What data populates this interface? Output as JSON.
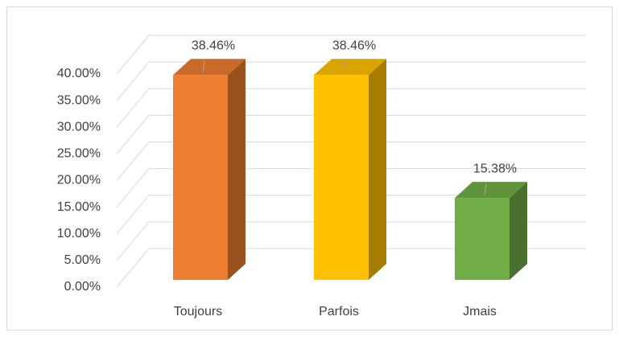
{
  "chart_data": {
    "type": "bar3d",
    "categories": [
      "Toujours",
      "Parfois",
      "Jmais"
    ],
    "values": [
      38.46,
      38.46,
      15.38
    ],
    "value_labels": [
      "38.46%",
      "38.46%",
      "15.38%"
    ],
    "colors": [
      "#ed7d31",
      "#ffc000",
      "#70ad47"
    ],
    "ylim": [
      0,
      40
    ],
    "yticks": [
      {
        "value": 0,
        "label": "0.00%"
      },
      {
        "value": 5,
        "label": "5.00%"
      },
      {
        "value": 10,
        "label": "10.00%"
      },
      {
        "value": 15,
        "label": "15.00%"
      },
      {
        "value": 20,
        "label": "20.00%"
      },
      {
        "value": 25,
        "label": "25.00%"
      },
      {
        "value": 30,
        "label": "30.00%"
      },
      {
        "value": 35,
        "label": "35.00%"
      },
      {
        "value": 40,
        "label": "40.00%"
      }
    ],
    "grid": true
  }
}
